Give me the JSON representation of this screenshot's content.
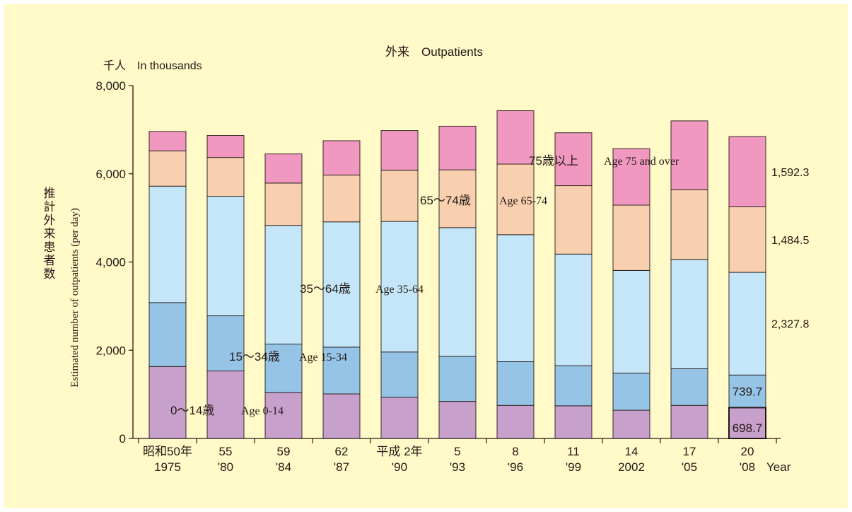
{
  "colors": {
    "background": "#fffac8",
    "age_0_14": "#c8a0cc",
    "age_15_34": "#96c4e6",
    "age_35_64": "#c4e6f8",
    "age_65_74": "#f8d0b0",
    "age_75_over": "#f098c0"
  },
  "chart_data": {
    "type": "bar",
    "stacked": true,
    "title": "外来　Outpatients",
    "unit_label": "千人　In thousands",
    "ylabel_jp": "推計外来患者数",
    "ylabel_en": "Estimated number of outpatients (per day)",
    "ylim": [
      0,
      8000
    ],
    "yticks": [
      {
        "v": 0,
        "label": "0"
      },
      {
        "v": 2000,
        "label": "2,000"
      },
      {
        "v": 4000,
        "label": "4,000"
      },
      {
        "v": 6000,
        "label": "6,000"
      },
      {
        "v": 8000,
        "label": "8,000"
      }
    ],
    "categories": [
      [
        "昭和50年",
        "1975"
      ],
      [
        "55",
        "'80"
      ],
      [
        "59",
        "'84"
      ],
      [
        "62",
        "'87"
      ],
      [
        "平成 2年",
        "'90"
      ],
      [
        "5",
        "'93"
      ],
      [
        "8",
        "'96"
      ],
      [
        "11",
        "'99"
      ],
      [
        "14",
        "2002"
      ],
      [
        "17",
        "'05"
      ],
      [
        "20",
        "'08"
      ]
    ],
    "x_unit": "Year",
    "series": [
      {
        "key": "age_0_14",
        "jp": "0〜14歳",
        "en": "Age 0-14",
        "values": [
          1630,
          1530,
          1040,
          1010,
          930,
          840,
          750,
          740,
          640,
          750,
          698.7
        ]
      },
      {
        "key": "age_15_34",
        "jp": "15〜34歳",
        "en": "Age 15-34",
        "values": [
          1450,
          1250,
          1100,
          1060,
          1030,
          1020,
          990,
          910,
          840,
          830,
          739.7
        ]
      },
      {
        "key": "age_35_64",
        "jp": "35〜64歳",
        "en": "Age 35-64",
        "values": [
          2640,
          2710,
          2690,
          2840,
          2960,
          2920,
          2880,
          2530,
          2330,
          2480,
          2327.8
        ]
      },
      {
        "key": "age_65_74",
        "jp": "65〜74歳",
        "en": "Age 65-74",
        "values": [
          800,
          880,
          960,
          1060,
          1160,
          1310,
          1600,
          1550,
          1480,
          1580,
          1484.5
        ]
      },
      {
        "key": "age_75_over",
        "jp": "75歳以上",
        "en": "Age 75 and over",
        "values": [
          440,
          500,
          660,
          780,
          900,
          990,
          1210,
          1200,
          1280,
          1560,
          1592.3
        ]
      }
    ],
    "end_labels": [
      "698.7",
      "739.7",
      "2,327.8",
      "1,484.5",
      "1,592.3"
    ]
  }
}
